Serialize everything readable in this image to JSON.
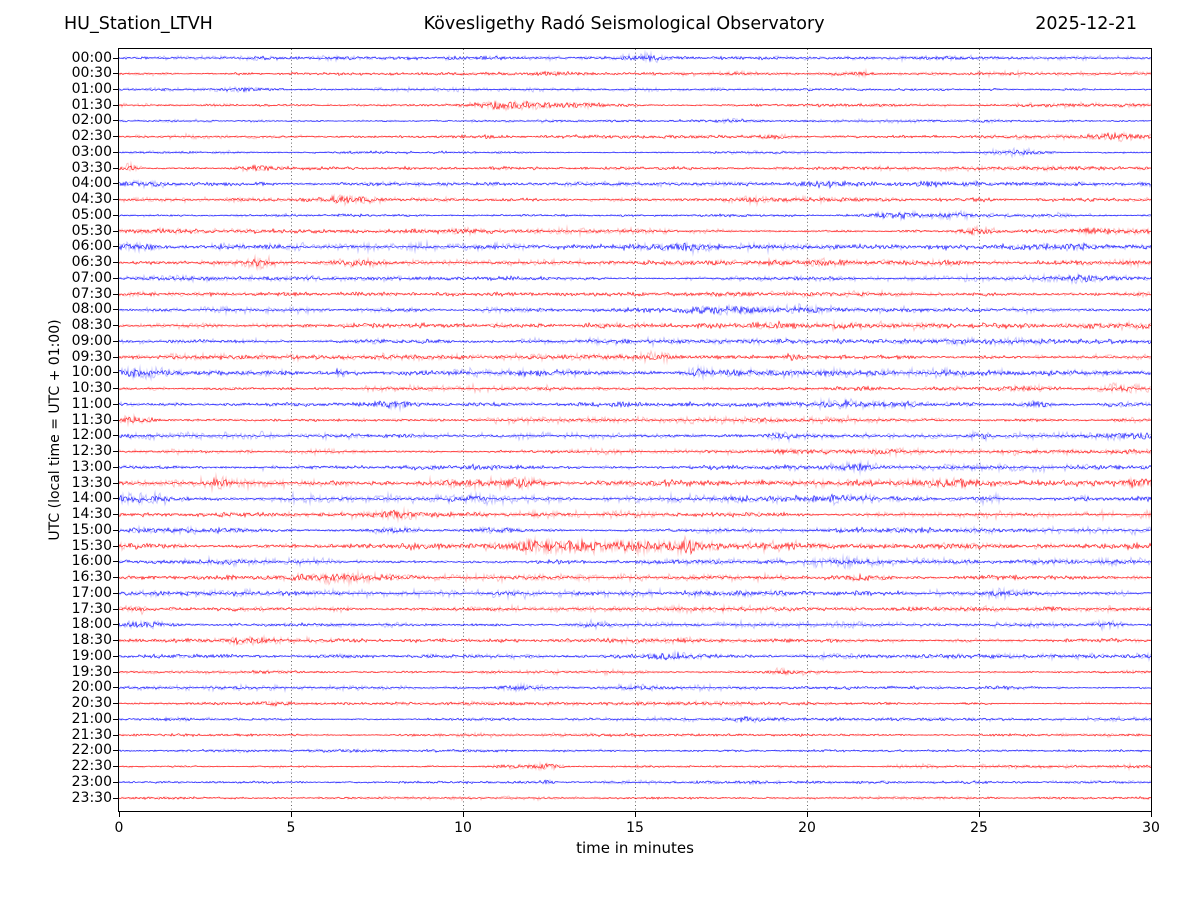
{
  "header": {
    "station": "HU_Station_LTVH",
    "observatory": "Kövesligethy Radó Seismological Observatory",
    "date": "2025-12-21"
  },
  "chart_data": {
    "type": "line",
    "subtype": "helicorder-dayplot",
    "station": "HU_Station_LTVH",
    "title": "Kövesligethy Radó Seismological Observatory",
    "date": "2025-12-21",
    "xlabel": "time in minutes",
    "ylabel": "UTC (local time = UTC + 01:00)",
    "xlim": [
      0,
      30
    ],
    "x_ticks": [
      0,
      5,
      10,
      15,
      20,
      25,
      30
    ],
    "minutes_per_line": 30,
    "grid": "vertical-dotted",
    "colors": {
      "blue_trace": "#0000ff",
      "red_trace": "#ff0000",
      "grid": "#555555",
      "axis": "#000000"
    },
    "rows": [
      {
        "t": "00:00",
        "c": "b",
        "n": 0.8,
        "e": [
          [
            15.4,
            0.7,
            2.2
          ],
          [
            4.2,
            0.5,
            1.0
          ]
        ]
      },
      {
        "t": "00:30",
        "c": "r",
        "n": 0.8,
        "e": [
          [
            12.5,
            0.5,
            1.1
          ],
          [
            21.5,
            0.5,
            1.2
          ]
        ]
      },
      {
        "t": "01:00",
        "c": "b",
        "n": 0.7,
        "e": [
          [
            3.5,
            0.4,
            0.9
          ]
        ]
      },
      {
        "t": "01:30",
        "c": "r",
        "n": 0.8,
        "e": [
          [
            11.4,
            0.9,
            2.6
          ],
          [
            13.2,
            1.5,
            1.2
          ]
        ]
      },
      {
        "t": "02:00",
        "c": "b",
        "n": 0.6,
        "e": [
          [
            18.0,
            0.5,
            0.9
          ]
        ]
      },
      {
        "t": "02:30",
        "c": "r",
        "n": 0.8,
        "e": [
          [
            29.0,
            0.7,
            1.9
          ],
          [
            19.0,
            0.5,
            1.1
          ]
        ]
      },
      {
        "t": "03:00",
        "c": "b",
        "n": 0.7,
        "e": [
          [
            26.3,
            0.7,
            1.9
          ]
        ]
      },
      {
        "t": "03:30",
        "c": "r",
        "n": 0.9,
        "e": [
          [
            0.3,
            0.2,
            2.4
          ],
          [
            4.0,
            0.5,
            1.1
          ]
        ]
      },
      {
        "t": "04:00",
        "c": "b",
        "n": 0.9,
        "e": [
          [
            0.6,
            0.9,
            1.7
          ],
          [
            20.5,
            0.8,
            1.7
          ],
          [
            23.6,
            0.5,
            1.3
          ],
          [
            24.9,
            0.4,
            1.3
          ]
        ]
      },
      {
        "t": "04:30",
        "c": "r",
        "n": 0.9,
        "e": [
          [
            6.6,
            0.8,
            2.0
          ],
          [
            18.4,
            0.4,
            1.3
          ]
        ]
      },
      {
        "t": "05:00",
        "c": "b",
        "n": 0.8,
        "e": [
          [
            22.6,
            0.7,
            1.8
          ],
          [
            24.2,
            0.5,
            1.1
          ]
        ]
      },
      {
        "t": "05:30",
        "c": "r",
        "n": 1.0,
        "e": [
          [
            24.9,
            0.5,
            2.1
          ],
          [
            28.2,
            1.2,
            1.0
          ]
        ]
      },
      {
        "t": "06:00",
        "c": "b",
        "n": 1.3,
        "e": [
          [
            0.5,
            0.8,
            1.9
          ],
          [
            16.5,
            0.5,
            1.3
          ],
          [
            27.4,
            0.9,
            1.7
          ]
        ]
      },
      {
        "t": "06:30",
        "c": "r",
        "n": 1.1,
        "e": [
          [
            4.0,
            0.5,
            2.2
          ],
          [
            6.9,
            0.9,
            2.3
          ],
          [
            20.6,
            0.5,
            1.7
          ]
        ]
      },
      {
        "t": "07:00",
        "c": "b",
        "n": 0.9,
        "e": [
          [
            27.8,
            1.0,
            1.9
          ]
        ]
      },
      {
        "t": "07:30",
        "c": "r",
        "n": 1.0,
        "e": []
      },
      {
        "t": "08:00",
        "c": "b",
        "n": 1.0,
        "e": [
          [
            17.6,
            1.1,
            2.5
          ],
          [
            19.6,
            0.8,
            1.5
          ]
        ]
      },
      {
        "t": "08:30",
        "c": "r",
        "n": 1.2,
        "e": [
          [
            18.9,
            0.6,
            1.5
          ]
        ]
      },
      {
        "t": "09:00",
        "c": "b",
        "n": 1.1,
        "e": []
      },
      {
        "t": "09:30",
        "c": "r",
        "n": 1.1,
        "e": [
          [
            15.6,
            0.4,
            1.5
          ],
          [
            19.7,
            0.4,
            1.3
          ]
        ]
      },
      {
        "t": "10:00",
        "c": "b",
        "n": 1.3,
        "e": [
          [
            0.8,
            0.8,
            1.7
          ],
          [
            6.4,
            0.15,
            3.0
          ],
          [
            16.8,
            0.5,
            1.5
          ]
        ]
      },
      {
        "t": "10:30",
        "c": "r",
        "n": 1.1,
        "e": [
          [
            29.1,
            0.6,
            1.7
          ]
        ]
      },
      {
        "t": "11:00",
        "c": "b",
        "n": 1.2,
        "e": [
          [
            8.2,
            0.5,
            1.7
          ],
          [
            21.0,
            0.5,
            1.7
          ],
          [
            26.6,
            0.6,
            1.5
          ],
          [
            29.3,
            0.5,
            1.5
          ]
        ]
      },
      {
        "t": "11:30",
        "c": "r",
        "n": 1.2,
        "e": [
          [
            0.5,
            0.6,
            1.5
          ]
        ]
      },
      {
        "t": "12:00",
        "c": "b",
        "n": 1.2,
        "e": [
          [
            19.4,
            0.5,
            1.7
          ],
          [
            25.1,
            0.4,
            1.5
          ],
          [
            28.9,
            1.0,
            1.7
          ]
        ]
      },
      {
        "t": "12:30",
        "c": "r",
        "n": 1.0,
        "e": [
          [
            22.2,
            0.4,
            1.1
          ]
        ]
      },
      {
        "t": "13:00",
        "c": "b",
        "n": 1.2,
        "e": [
          [
            21.5,
            0.6,
            1.9
          ]
        ]
      },
      {
        "t": "13:30",
        "c": "r",
        "n": 1.5,
        "e": [
          [
            2.9,
            0.25,
            2.6
          ],
          [
            11.7,
            0.5,
            1.9
          ],
          [
            24.5,
            0.8,
            1.6
          ],
          [
            29.5,
            0.5,
            1.9
          ]
        ]
      },
      {
        "t": "14:00",
        "c": "b",
        "n": 1.4,
        "e": [
          [
            0.5,
            0.9,
            2.1
          ],
          [
            10.3,
            0.6,
            1.7
          ],
          [
            20.8,
            0.5,
            1.7
          ],
          [
            25.2,
            0.4,
            1.9
          ]
        ]
      },
      {
        "t": "14:30",
        "c": "r",
        "n": 1.2,
        "e": [
          [
            8.2,
            0.6,
            1.5
          ]
        ]
      },
      {
        "t": "15:00",
        "c": "b",
        "n": 1.2,
        "e": [
          [
            8.0,
            0.7,
            1.7
          ],
          [
            10.9,
            0.6,
            1.7
          ]
        ]
      },
      {
        "t": "15:30",
        "c": "r",
        "n": 1.5,
        "e": [
          [
            12.2,
            0.5,
            1.9
          ],
          [
            13.2,
            1.3,
            2.2
          ],
          [
            15.4,
            0.9,
            2.3
          ],
          [
            16.6,
            0.25,
            4.2
          ]
        ]
      },
      {
        "t": "16:00",
        "c": "b",
        "n": 1.2,
        "e": [
          [
            21.4,
            0.8,
            1.9
          ]
        ]
      },
      {
        "t": "16:30",
        "c": "r",
        "n": 1.1,
        "e": [
          [
            6.2,
            1.1,
            2.1
          ],
          [
            21.6,
            0.5,
            1.7
          ]
        ]
      },
      {
        "t": "17:00",
        "c": "b",
        "n": 1.1,
        "e": [
          [
            25.6,
            0.5,
            1.9
          ],
          [
            11.4,
            0.6,
            1.3
          ]
        ]
      },
      {
        "t": "17:30",
        "c": "r",
        "n": 1.0,
        "e": [
          [
            0.5,
            0.5,
            1.3
          ]
        ]
      },
      {
        "t": "18:00",
        "c": "b",
        "n": 1.0,
        "e": [
          [
            0.7,
            0.9,
            2.1
          ],
          [
            13.8,
            0.5,
            1.3
          ],
          [
            28.7,
            0.4,
            1.7
          ]
        ]
      },
      {
        "t": "18:30",
        "c": "r",
        "n": 0.9,
        "e": [
          [
            3.8,
            0.6,
            1.7
          ]
        ]
      },
      {
        "t": "19:00",
        "c": "b",
        "n": 0.9,
        "e": [
          [
            15.9,
            0.8,
            1.8
          ]
        ]
      },
      {
        "t": "19:30",
        "c": "r",
        "n": 0.8,
        "e": [
          [
            19.3,
            0.5,
            1.5
          ]
        ]
      },
      {
        "t": "20:00",
        "c": "b",
        "n": 0.8,
        "e": [
          [
            11.6,
            0.8,
            1.7
          ],
          [
            15.0,
            0.5,
            1.5
          ]
        ]
      },
      {
        "t": "20:30",
        "c": "r",
        "n": 0.7,
        "e": [
          [
            4.5,
            0.4,
            1.0
          ]
        ]
      },
      {
        "t": "21:00",
        "c": "b",
        "n": 0.7,
        "e": [
          [
            18.5,
            0.8,
            1.8
          ]
        ]
      },
      {
        "t": "21:30",
        "c": "r",
        "n": 0.7,
        "e": []
      },
      {
        "t": "22:00",
        "c": "b",
        "n": 0.6,
        "e": []
      },
      {
        "t": "22:30",
        "c": "r",
        "n": 0.7,
        "e": [
          [
            11.2,
            0.5,
            1.5
          ],
          [
            12.3,
            0.5,
            2.1
          ]
        ]
      },
      {
        "t": "23:00",
        "c": "b",
        "n": 0.6,
        "e": [
          [
            12.4,
            0.2,
            1.3
          ]
        ]
      },
      {
        "t": "23:30",
        "c": "r",
        "n": 0.6,
        "e": []
      }
    ]
  }
}
